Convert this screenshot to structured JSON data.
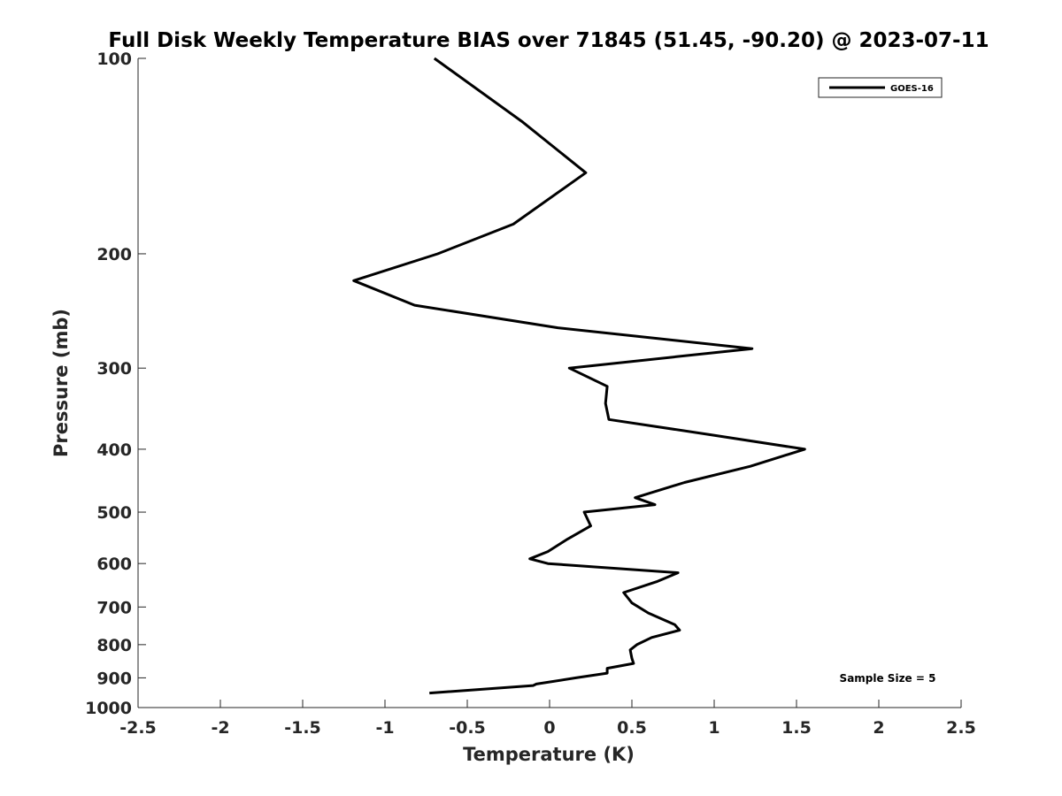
{
  "chart_data": {
    "type": "line",
    "title": "Full Disk Weekly Temperature BIAS over 71845 (51.45, -90.20) @ 2023-07-11",
    "xlabel": "Temperature (K)",
    "ylabel": "Pressure (mb)",
    "xlim": [
      -2.5,
      2.5
    ],
    "ylim": [
      1000,
      100
    ],
    "y_scale": "log",
    "x_ticks": [
      -2.5,
      -2,
      -1.5,
      -1,
      -0.5,
      0,
      0.5,
      1,
      1.5,
      2,
      2.5
    ],
    "x_tick_labels": [
      "-2.5",
      "-2",
      "-1.5",
      "-1",
      "-0.5",
      "0",
      "0.5",
      "1",
      "1.5",
      "2",
      "2.5"
    ],
    "y_ticks": [
      100,
      200,
      300,
      400,
      500,
      600,
      700,
      800,
      900,
      1000
    ],
    "y_tick_labels": [
      "100",
      "200",
      "300",
      "400",
      "500",
      "600",
      "700",
      "800",
      "900",
      "1000"
    ],
    "grid": false,
    "legend_position": "top-right",
    "annotation": "Sample Size = 5",
    "series": [
      {
        "name": "GOES-16",
        "color": "#000000",
        "points": [
          {
            "x": -0.7,
            "y": 100
          },
          {
            "x": -0.17,
            "y": 125
          },
          {
            "x": 0.22,
            "y": 150
          },
          {
            "x": -0.22,
            "y": 180
          },
          {
            "x": -0.68,
            "y": 200
          },
          {
            "x": -1.19,
            "y": 220
          },
          {
            "x": -0.82,
            "y": 240
          },
          {
            "x": 0.05,
            "y": 260
          },
          {
            "x": 1.23,
            "y": 280
          },
          {
            "x": 0.12,
            "y": 300
          },
          {
            "x": 0.35,
            "y": 320
          },
          {
            "x": 0.34,
            "y": 340
          },
          {
            "x": 0.36,
            "y": 360
          },
          {
            "x": 0.98,
            "y": 380
          },
          {
            "x": 1.55,
            "y": 400
          },
          {
            "x": 1.22,
            "y": 425
          },
          {
            "x": 0.82,
            "y": 450
          },
          {
            "x": 0.52,
            "y": 475
          },
          {
            "x": 0.64,
            "y": 487
          },
          {
            "x": 0.21,
            "y": 500
          },
          {
            "x": 0.25,
            "y": 525
          },
          {
            "x": 0.11,
            "y": 550
          },
          {
            "x": -0.01,
            "y": 575
          },
          {
            "x": -0.12,
            "y": 590
          },
          {
            "x": -0.01,
            "y": 600
          },
          {
            "x": 0.78,
            "y": 620
          },
          {
            "x": 0.65,
            "y": 640
          },
          {
            "x": 0.45,
            "y": 665
          },
          {
            "x": 0.5,
            "y": 690
          },
          {
            "x": 0.6,
            "y": 715
          },
          {
            "x": 0.76,
            "y": 745
          },
          {
            "x": 0.79,
            "y": 760
          },
          {
            "x": 0.62,
            "y": 780
          },
          {
            "x": 0.53,
            "y": 800
          },
          {
            "x": 0.49,
            "y": 815
          },
          {
            "x": 0.5,
            "y": 840
          },
          {
            "x": 0.51,
            "y": 855
          },
          {
            "x": 0.35,
            "y": 870
          },
          {
            "x": 0.35,
            "y": 885
          },
          {
            "x": 0.16,
            "y": 900
          },
          {
            "x": -0.08,
            "y": 920
          },
          {
            "x": -0.1,
            "y": 925
          },
          {
            "x": -0.73,
            "y": 950
          }
        ]
      }
    ]
  }
}
